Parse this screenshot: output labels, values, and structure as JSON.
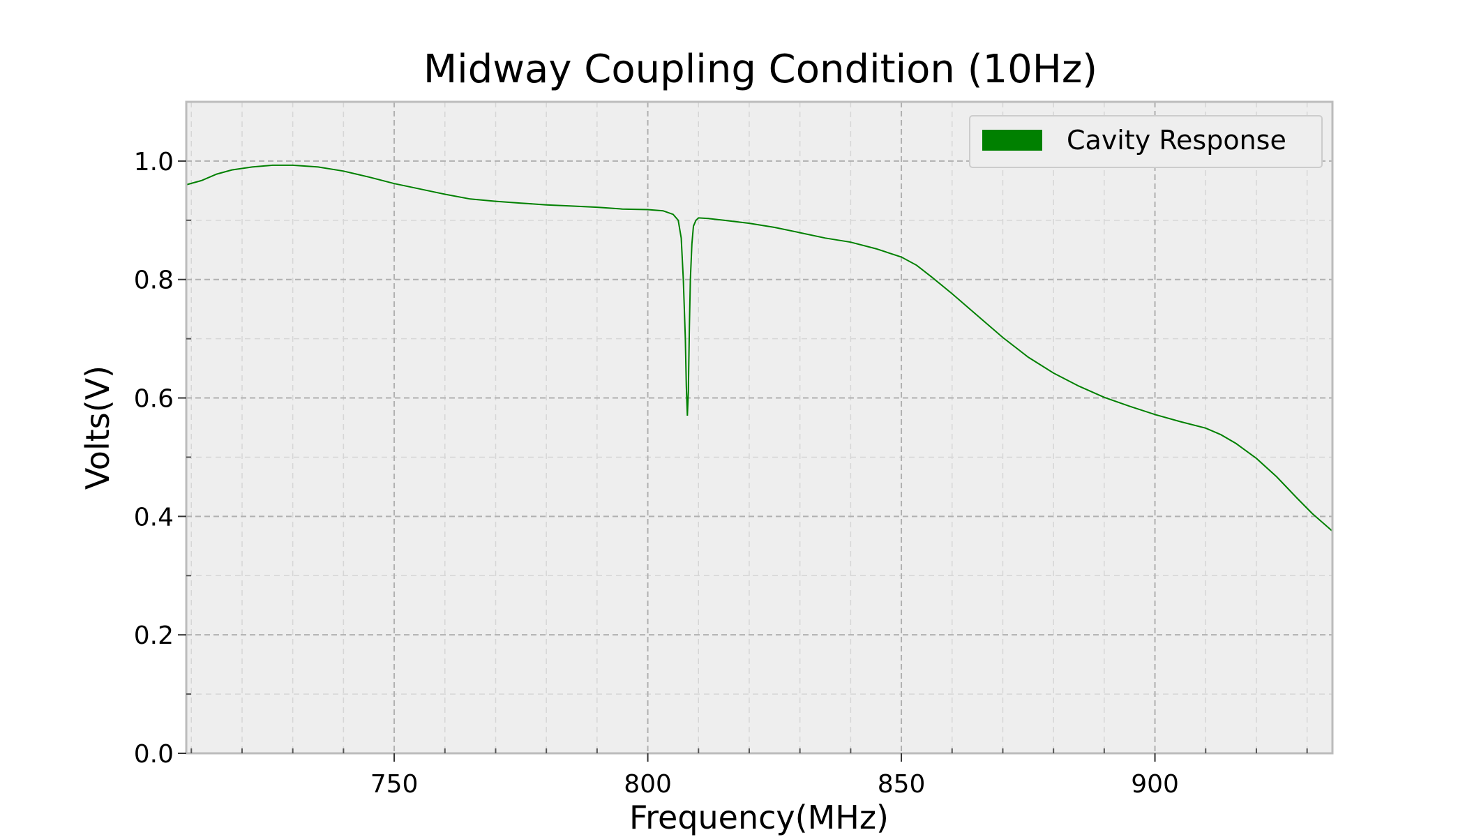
{
  "chart_data": {
    "type": "line",
    "title": "Midway Coupling Condition (10Hz)",
    "xlabel": "Frequency(MHz)",
    "ylabel": "Volts(V)",
    "xlim": [
      709,
      935
    ],
    "ylim": [
      0,
      1.1
    ],
    "xticks": [
      750,
      800,
      850,
      900
    ],
    "xtick_labels": [
      "750",
      "800",
      "850",
      "900"
    ],
    "yticks": [
      0.0,
      0.2,
      0.4,
      0.6,
      0.8,
      1.0
    ],
    "ytick_labels": [
      "0.0",
      "0.2",
      "0.4",
      "0.6",
      "0.8",
      "1.0"
    ],
    "grid": true,
    "legend_position": "top-right",
    "colors": {
      "series": "#008000",
      "plot_background": "#eeeeee",
      "grid": "#b0b0b0",
      "frame": "#bcbcbc"
    },
    "series": [
      {
        "name": "Cavity Response",
        "x": [
          709,
          712,
          715,
          718,
          722,
          726,
          730,
          735,
          740,
          745,
          750,
          755,
          760,
          765,
          770,
          775,
          780,
          785,
          790,
          795,
          800,
          803,
          805,
          806,
          806.6,
          807,
          807.4,
          807.6,
          807.8,
          808,
          808.2,
          808.4,
          808.7,
          809,
          809.5,
          810,
          812,
          815,
          820,
          825,
          830,
          835,
          840,
          845,
          850,
          853,
          856,
          860,
          865,
          870,
          875,
          880,
          885,
          890,
          895,
          900,
          905,
          910,
          913,
          916,
          920,
          924,
          928,
          931,
          935
        ],
        "y": [
          0.96,
          0.967,
          0.978,
          0.985,
          0.99,
          0.993,
          0.993,
          0.99,
          0.983,
          0.973,
          0.962,
          0.953,
          0.944,
          0.936,
          0.932,
          0.929,
          0.926,
          0.924,
          0.922,
          0.919,
          0.918,
          0.916,
          0.91,
          0.9,
          0.87,
          0.8,
          0.7,
          0.62,
          0.57,
          0.61,
          0.72,
          0.8,
          0.86,
          0.89,
          0.9,
          0.904,
          0.903,
          0.9,
          0.895,
          0.888,
          0.879,
          0.87,
          0.863,
          0.852,
          0.838,
          0.824,
          0.804,
          0.776,
          0.739,
          0.702,
          0.669,
          0.642,
          0.62,
          0.601,
          0.586,
          0.572,
          0.56,
          0.549,
          0.538,
          0.523,
          0.498,
          0.467,
          0.431,
          0.405,
          0.375
        ]
      }
    ]
  }
}
